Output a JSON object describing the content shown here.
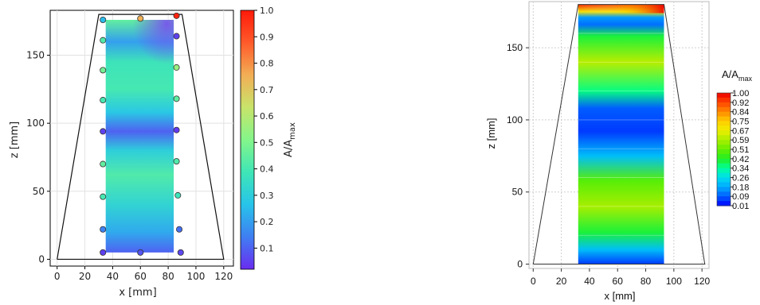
{
  "chart_data": [
    {
      "type": "heatmap",
      "panel": "left",
      "xlabel_main": "x",
      "xlabel_unit": "mm",
      "ylabel_main": "z",
      "ylabel_unit": "mm",
      "x_ticks": [
        "0",
        "20",
        "40",
        "60",
        "80",
        "100",
        "120"
      ],
      "y_ticks": [
        "0",
        "50",
        "100",
        "150"
      ],
      "xlim": [
        -5,
        127
      ],
      "ylim": [
        -5,
        183
      ],
      "colorbar": {
        "label_main": "A/A",
        "label_sub": "max",
        "ticks": [
          "0.1",
          "0.2",
          "0.3",
          "0.4",
          "0.5",
          "0.6",
          "0.7",
          "0.8",
          "0.9",
          "1.0"
        ],
        "range": [
          0.02,
          1.0
        ],
        "colors": [
          "#6a2cf0",
          "#3f7ef2",
          "#27c4ea",
          "#3fe6b6",
          "#84f58a",
          "#c8e46a",
          "#f2ae55",
          "#ff5a2a",
          "#ff1a0a"
        ]
      },
      "outline_x": [
        0,
        30,
        90,
        120
      ],
      "outline_z": [
        0,
        180,
        180,
        0
      ],
      "field_x": [
        35,
        84
      ],
      "field_z": [
        5,
        176
      ],
      "field_profile": [
        {
          "z": 5,
          "value": 0.1
        },
        {
          "z": 20,
          "value": 0.22
        },
        {
          "z": 40,
          "value": 0.32
        },
        {
          "z": 62,
          "value": 0.42
        },
        {
          "z": 80,
          "value": 0.3
        },
        {
          "z": 94,
          "value": 0.1
        },
        {
          "z": 108,
          "value": 0.28
        },
        {
          "z": 125,
          "value": 0.4
        },
        {
          "z": 145,
          "value": 0.38
        },
        {
          "z": 160,
          "value": 0.2
        },
        {
          "z": 176,
          "value": 0.45
        }
      ],
      "sensors": [
        {
          "x": 33,
          "z": 5,
          "value": 0.05
        },
        {
          "x": 60,
          "z": 5,
          "value": 0.08
        },
        {
          "x": 89,
          "z": 5,
          "value": 0.06
        },
        {
          "x": 33,
          "z": 22,
          "value": 0.15
        },
        {
          "x": 88,
          "z": 22,
          "value": 0.12
        },
        {
          "x": 33,
          "z": 46,
          "value": 0.4
        },
        {
          "x": 87,
          "z": 47,
          "value": 0.38
        },
        {
          "x": 33,
          "z": 70,
          "value": 0.45
        },
        {
          "x": 86,
          "z": 72,
          "value": 0.42
        },
        {
          "x": 33,
          "z": 94,
          "value": 0.05
        },
        {
          "x": 86,
          "z": 95,
          "value": 0.04
        },
        {
          "x": 33,
          "z": 117,
          "value": 0.4
        },
        {
          "x": 86,
          "z": 118,
          "value": 0.45
        },
        {
          "x": 33,
          "z": 139,
          "value": 0.48
        },
        {
          "x": 86,
          "z": 141,
          "value": 0.55
        },
        {
          "x": 33,
          "z": 161,
          "value": 0.42
        },
        {
          "x": 86,
          "z": 164,
          "value": 0.05
        },
        {
          "x": 33,
          "z": 176,
          "value": 0.25
        },
        {
          "x": 60,
          "z": 177,
          "value": 0.75
        },
        {
          "x": 86,
          "z": 179,
          "value": 0.98
        }
      ]
    },
    {
      "type": "heatmap",
      "panel": "right",
      "xlabel_main": "x",
      "xlabel_unit": "mm",
      "ylabel_main": "z",
      "ylabel_unit": "mm",
      "x_ticks": [
        "0",
        "20",
        "40",
        "60",
        "80",
        "100",
        "120"
      ],
      "y_ticks": [
        "0",
        "50",
        "100",
        "150"
      ],
      "xlim": [
        -3,
        125
      ],
      "ylim": [
        -3,
        182
      ],
      "colorbar": {
        "label_main": "A/A",
        "label_sub": "max",
        "ticks": [
          "1.00",
          "0.92",
          "0.84",
          "0.75",
          "0.67",
          "0.59",
          "0.51",
          "0.42",
          "0.34",
          "0.26",
          "0.18",
          "0.09",
          "0.01"
        ],
        "colors": [
          "#0000ff",
          "#0060ff",
          "#00aaff",
          "#00ddee",
          "#00ff99",
          "#22ee22",
          "#66ee00",
          "#aaee00",
          "#eeee00",
          "#ffcc00",
          "#ff8800",
          "#ff4400",
          "#ee0000"
        ]
      },
      "outline_x": [
        0,
        32,
        93,
        122
      ],
      "outline_z": [
        0,
        180,
        180,
        0
      ],
      "field_x": [
        32,
        93
      ],
      "field_z": [
        0,
        180
      ],
      "field_profile": [
        {
          "z": 0,
          "value": 0.05
        },
        {
          "z": 10,
          "value": 0.2
        },
        {
          "z": 22,
          "value": 0.4
        },
        {
          "z": 40,
          "value": 0.58
        },
        {
          "z": 58,
          "value": 0.48
        },
        {
          "z": 75,
          "value": 0.2
        },
        {
          "z": 92,
          "value": 0.05
        },
        {
          "z": 108,
          "value": 0.08
        },
        {
          "z": 120,
          "value": 0.35
        },
        {
          "z": 140,
          "value": 0.6
        },
        {
          "z": 158,
          "value": 0.4
        },
        {
          "z": 166,
          "value": 0.1
        },
        {
          "z": 171,
          "value": 0.15
        },
        {
          "z": 175,
          "value": 0.7
        },
        {
          "z": 180,
          "value": 0.95
        }
      ]
    }
  ]
}
